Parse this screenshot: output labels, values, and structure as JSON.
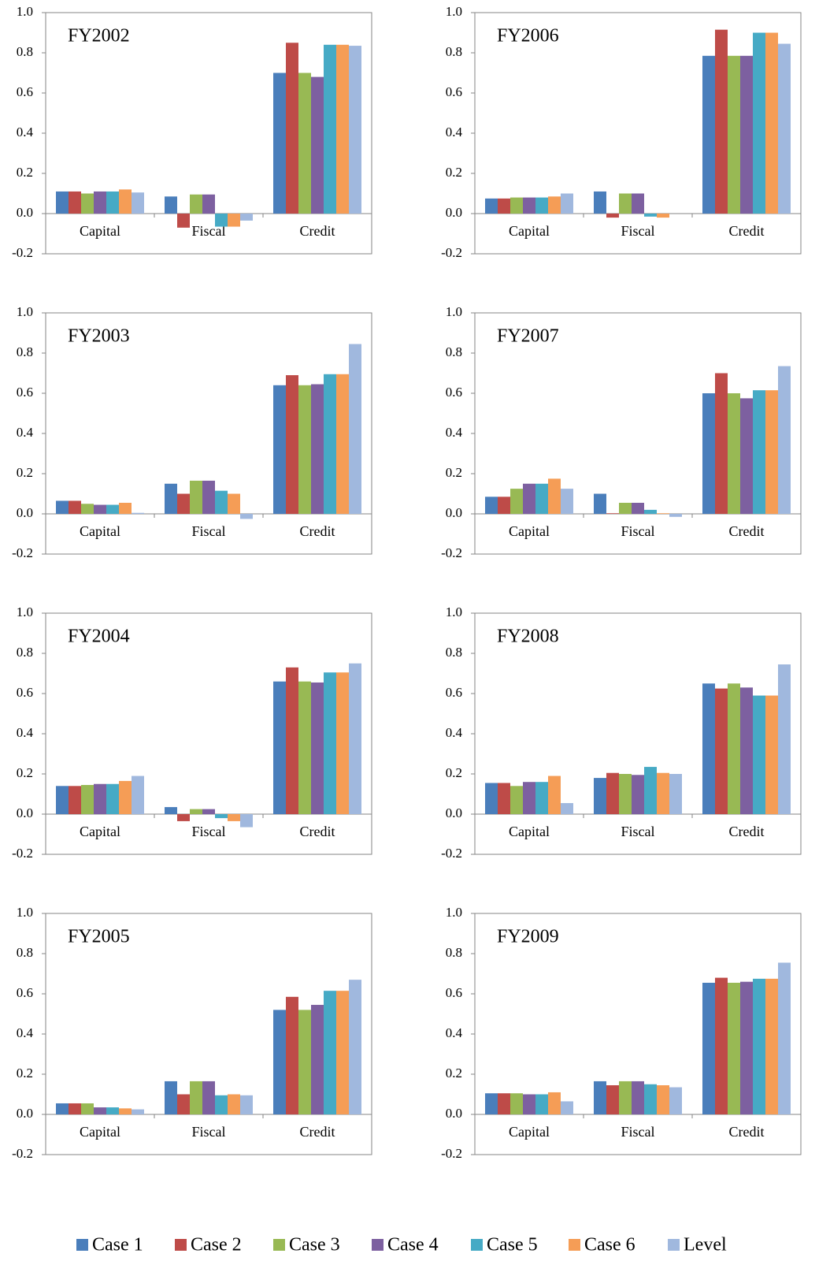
{
  "legend": {
    "series": [
      {
        "name": "Case 1",
        "color": "#4a7ebb"
      },
      {
        "name": "Case 2",
        "color": "#be4b48"
      },
      {
        "name": "Case 3",
        "color": "#98b954"
      },
      {
        "name": "Case 4",
        "color": "#7d60a0"
      },
      {
        "name": "Case 5",
        "color": "#46aac5"
      },
      {
        "name": "Case 6",
        "color": "#f59d56"
      },
      {
        "name": "Level",
        "color": "#a0b8de"
      }
    ]
  },
  "chart_data": [
    {
      "type": "bar",
      "title": "FY2002",
      "categories": [
        "Capital",
        "Fiscal",
        "Credit"
      ],
      "series": [
        {
          "values": [
            0.11,
            0.085,
            0.7
          ]
        },
        {
          "values": [
            0.11,
            -0.07,
            0.85
          ]
        },
        {
          "values": [
            0.1,
            0.095,
            0.7
          ]
        },
        {
          "values": [
            0.11,
            0.095,
            0.68
          ]
        },
        {
          "values": [
            0.11,
            -0.065,
            0.84
          ]
        },
        {
          "values": [
            0.12,
            -0.065,
            0.84
          ]
        },
        {
          "values": [
            0.105,
            -0.035,
            0.835
          ]
        }
      ],
      "ylim": [
        -0.2,
        1
      ],
      "yticks": [
        -0.2,
        {
          "value": 0,
          "label": "0.0"
        },
        0.2,
        0.4,
        0.6,
        0.8,
        {
          "value": 1,
          "label": "1.0"
        }
      ]
    },
    {
      "type": "bar",
      "title": "FY2003",
      "categories": [
        "Capital",
        "Fiscal",
        "Credit"
      ],
      "series": [
        {
          "values": [
            0.065,
            0.15,
            0.64
          ]
        },
        {
          "values": [
            0.065,
            0.1,
            0.69
          ]
        },
        {
          "values": [
            0.05,
            0.165,
            0.64
          ]
        },
        {
          "values": [
            0.045,
            0.165,
            0.645
          ]
        },
        {
          "values": [
            0.045,
            0.115,
            0.695
          ]
        },
        {
          "values": [
            0.055,
            0.1,
            0.695
          ]
        },
        {
          "values": [
            0.005,
            -0.025,
            0.845
          ]
        }
      ],
      "ylim": [
        -0.2,
        1
      ],
      "yticks": [
        -0.2,
        {
          "value": 0,
          "label": "0.0"
        },
        0.2,
        0.4,
        0.6,
        0.8,
        {
          "value": 1,
          "label": "1.0"
        }
      ]
    },
    {
      "type": "bar",
      "title": "FY2004",
      "categories": [
        "Capital",
        "Fiscal",
        "Credit"
      ],
      "series": [
        {
          "values": [
            0.14,
            0.035,
            0.66
          ]
        },
        {
          "values": [
            0.14,
            -0.035,
            0.73
          ]
        },
        {
          "values": [
            0.145,
            0.025,
            0.66
          ]
        },
        {
          "values": [
            0.15,
            0.025,
            0.655
          ]
        },
        {
          "values": [
            0.15,
            -0.02,
            0.705
          ]
        },
        {
          "values": [
            0.165,
            -0.035,
            0.705
          ]
        },
        {
          "values": [
            0.19,
            -0.065,
            0.75
          ]
        }
      ],
      "ylim": [
        -0.2,
        1
      ],
      "yticks": [
        -0.2,
        {
          "value": 0,
          "label": "0.0"
        },
        0.2,
        0.4,
        0.6,
        0.8,
        {
          "value": 1,
          "label": "1.0"
        }
      ]
    },
    {
      "type": "bar",
      "title": "FY2005",
      "categories": [
        "Capital",
        "Fiscal",
        "Credit"
      ],
      "series": [
        {
          "values": [
            0.055,
            0.165,
            0.52
          ]
        },
        {
          "values": [
            0.055,
            0.1,
            0.585
          ]
        },
        {
          "values": [
            0.055,
            0.165,
            0.52
          ]
        },
        {
          "values": [
            0.035,
            0.165,
            0.545
          ]
        },
        {
          "values": [
            0.035,
            0.095,
            0.615
          ]
        },
        {
          "values": [
            0.03,
            0.1,
            0.615
          ]
        },
        {
          "values": [
            0.025,
            0.095,
            0.67
          ]
        }
      ],
      "ylim": [
        -0.2,
        1
      ],
      "yticks": [
        -0.2,
        {
          "value": 0,
          "label": "0.0"
        },
        0.2,
        0.4,
        0.6,
        0.8,
        {
          "value": 1,
          "label": "1.0"
        }
      ]
    },
    {
      "type": "bar",
      "title": "FY2006",
      "categories": [
        "Capital",
        "Fiscal",
        "Credit"
      ],
      "series": [
        {
          "values": [
            0.075,
            0.11,
            0.785
          ]
        },
        {
          "values": [
            0.075,
            -0.02,
            0.915
          ]
        },
        {
          "values": [
            0.08,
            0.1,
            0.785
          ]
        },
        {
          "values": [
            0.08,
            0.1,
            0.785
          ]
        },
        {
          "values": [
            0.08,
            -0.015,
            0.9
          ]
        },
        {
          "values": [
            0.085,
            -0.02,
            0.9
          ]
        },
        {
          "values": [
            0.1,
            0.0,
            0.845
          ]
        }
      ],
      "ylim": [
        -0.2,
        1
      ],
      "yticks": [
        -0.2,
        {
          "value": 0,
          "label": "0.0"
        },
        0.2,
        0.4,
        0.6,
        0.8,
        {
          "value": 1,
          "label": "1.0"
        }
      ]
    },
    {
      "type": "bar",
      "title": "FY2007",
      "categories": [
        "Capital",
        "Fiscal",
        "Credit"
      ],
      "series": [
        {
          "values": [
            0.085,
            0.1,
            0.6
          ]
        },
        {
          "values": [
            0.085,
            0.003,
            0.7
          ]
        },
        {
          "values": [
            0.125,
            0.055,
            0.6
          ]
        },
        {
          "values": [
            0.15,
            0.055,
            0.575
          ]
        },
        {
          "values": [
            0.15,
            0.02,
            0.615
          ]
        },
        {
          "values": [
            0.175,
            0.003,
            0.615
          ]
        },
        {
          "values": [
            0.125,
            -0.015,
            0.735
          ]
        }
      ],
      "ylim": [
        -0.2,
        1
      ],
      "yticks": [
        -0.2,
        {
          "value": 0,
          "label": "0.0"
        },
        0.2,
        0.4,
        0.6,
        0.8,
        {
          "value": 1,
          "label": "1.0"
        }
      ]
    },
    {
      "type": "bar",
      "title": "FY2008",
      "categories": [
        "Capital",
        "Fiscal",
        "Credit"
      ],
      "series": [
        {
          "values": [
            0.155,
            0.18,
            0.65
          ]
        },
        {
          "values": [
            0.155,
            0.205,
            0.625
          ]
        },
        {
          "values": [
            0.14,
            0.2,
            0.65
          ]
        },
        {
          "values": [
            0.16,
            0.195,
            0.63
          ]
        },
        {
          "values": [
            0.16,
            0.235,
            0.59
          ]
        },
        {
          "values": [
            0.19,
            0.205,
            0.59
          ]
        },
        {
          "values": [
            0.055,
            0.2,
            0.745
          ]
        }
      ],
      "ylim": [
        -0.2,
        1
      ],
      "yticks": [
        -0.2,
        {
          "value": 0,
          "label": "0.0"
        },
        0.2,
        0.4,
        0.6,
        0.8,
        {
          "value": 1,
          "label": "1.0"
        }
      ]
    },
    {
      "type": "bar",
      "title": "FY2009",
      "categories": [
        "Capital",
        "Fiscal",
        "Credit"
      ],
      "series": [
        {
          "values": [
            0.105,
            0.165,
            0.655
          ]
        },
        {
          "values": [
            0.105,
            0.145,
            0.68
          ]
        },
        {
          "values": [
            0.105,
            0.165,
            0.655
          ]
        },
        {
          "values": [
            0.1,
            0.165,
            0.66
          ]
        },
        {
          "values": [
            0.1,
            0.15,
            0.675
          ]
        },
        {
          "values": [
            0.11,
            0.145,
            0.675
          ]
        },
        {
          "values": [
            0.065,
            0.135,
            0.755
          ]
        }
      ],
      "ylim": [
        -0.2,
        1
      ],
      "yticks": [
        -0.2,
        {
          "value": 0,
          "label": "0.0"
        },
        0.2,
        0.4,
        0.6,
        0.8,
        {
          "value": 1,
          "label": "1.0"
        }
      ]
    }
  ]
}
